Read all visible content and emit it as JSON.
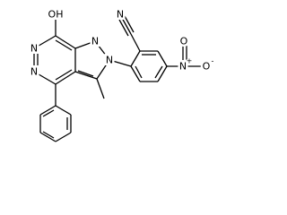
{
  "atoms": {
    "hydroxyl": "OH",
    "n6": "N",
    "n5": "N",
    "n1": "N",
    "n2": "N",
    "nitrile_n": "N",
    "nitro_n": "N",
    "nitro_o1": "O",
    "nitro_o2": "O",
    "plus": "+",
    "minus": "-"
  }
}
